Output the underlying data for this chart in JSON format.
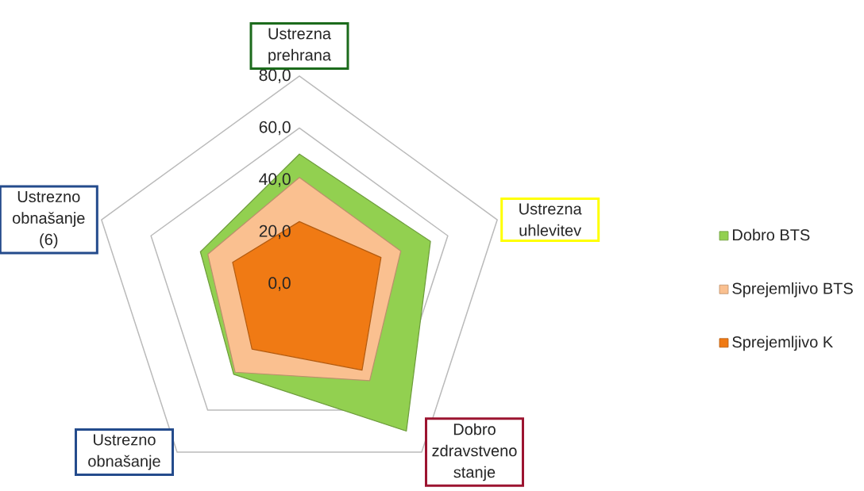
{
  "chart_data": {
    "type": "radar",
    "categories": [
      "Ustrezna prehrana",
      "Ustrezna uhlevitev",
      "Dobro zdravstveno stanje",
      "Ustrezno obnašanje",
      "Ustrezno obnašanje (6)"
    ],
    "series": [
      {
        "name": "Dobro BTS",
        "color": "#92d050",
        "values": [
          50,
          53,
          70,
          43,
          40
        ]
      },
      {
        "name": "Sprejemljivo BTS",
        "color": "#fac090",
        "values": [
          41,
          41,
          46,
          42,
          37
        ]
      },
      {
        "name": "Sprejemljivo K",
        "color": "#f07a14",
        "values": [
          24,
          33,
          41,
          31,
          27
        ]
      }
    ],
    "ylim": [
      0,
      80
    ],
    "yticks": [
      {
        "value": 0,
        "label": "0,0"
      },
      {
        "value": 20,
        "label": "20,0"
      },
      {
        "value": 40,
        "label": "40,0"
      },
      {
        "value": 60,
        "label": "60,0"
      },
      {
        "value": 80,
        "label": "80,0"
      }
    ],
    "grid": true,
    "legend": "right"
  }
}
